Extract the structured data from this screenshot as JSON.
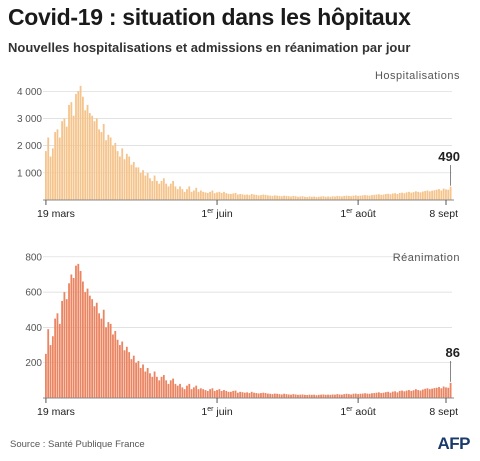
{
  "title": "Covid-19 : situation dans les hôpitaux",
  "subtitle": "Nouvelles hospitalisations et admissions en réanimation par jour",
  "source": "Source : Santé Publique France",
  "logo": "AFP",
  "colors": {
    "hosp": "#f5c48c",
    "rea": "#eb8461",
    "grid": "#d8d8d8",
    "axis": "#888888"
  },
  "chart_data": [
    {
      "type": "bar",
      "title": "Hospitalisations",
      "xlabel": "",
      "ylabel": "",
      "ylim": [
        0,
        4600
      ],
      "yticks": [
        1000,
        2000,
        3000,
        4000
      ],
      "ytick_labels": [
        "1 000",
        "2 000",
        "3 000",
        "4 000"
      ],
      "x_start": "19 mars",
      "xtick_labels": [
        {
          "label": "19 mars",
          "main": "19 mars",
          "sup": "",
          "tail": "",
          "index": 0
        },
        {
          "label": "1er juin",
          "main": "1",
          "sup": "er",
          "tail": " juin",
          "index": 74
        },
        {
          "label": "1er août",
          "main": "1",
          "sup": "er",
          "tail": " août",
          "index": 135
        },
        {
          "label": "8 sept",
          "main": "8 sept",
          "sup": "",
          "tail": "",
          "index": 173
        }
      ],
      "last_value": 490,
      "values": [
        1800,
        2300,
        1600,
        1900,
        2500,
        2600,
        2300,
        2900,
        3000,
        2700,
        3500,
        3600,
        3100,
        3900,
        4000,
        4200,
        3800,
        3300,
        3500,
        3200,
        3100,
        2900,
        3000,
        2600,
        2500,
        2800,
        2200,
        2400,
        2300,
        2000,
        2100,
        1800,
        1600,
        1900,
        1500,
        1700,
        1600,
        1300,
        1400,
        1200,
        1200,
        1000,
        1100,
        900,
        1000,
        800,
        700,
        900,
        700,
        600,
        700,
        800,
        600,
        500,
        600,
        700,
        500,
        400,
        500,
        400,
        300,
        400,
        500,
        300,
        350,
        450,
        300,
        350,
        300,
        280,
        260,
        300,
        350,
        250,
        280,
        300,
        260,
        300,
        250,
        230,
        220,
        240,
        260,
        200,
        220,
        210,
        190,
        200,
        180,
        220,
        200,
        190,
        170,
        180,
        200,
        190,
        170,
        160,
        150,
        170,
        160,
        150,
        140,
        160,
        150,
        140,
        130,
        150,
        140,
        120,
        130,
        140,
        120,
        110,
        130,
        120,
        130,
        110,
        120,
        130,
        140,
        120,
        130,
        120,
        140,
        130,
        150,
        140,
        130,
        150,
        160,
        150,
        140,
        160,
        170,
        150,
        160,
        170,
        180,
        170,
        160,
        180,
        190,
        200,
        210,
        190,
        200,
        220,
        230,
        210,
        240,
        250,
        220,
        260,
        270,
        250,
        280,
        300,
        270,
        290,
        320,
        300,
        280,
        310,
        330,
        350,
        320,
        340,
        360,
        380,
        400,
        350,
        420,
        390,
        380,
        490
      ]
    },
    {
      "type": "bar",
      "title": "Réanimation",
      "xlabel": "",
      "ylabel": "",
      "ylim": [
        0,
        850
      ],
      "yticks": [
        200,
        400,
        600,
        800
      ],
      "ytick_labels": [
        "200",
        "400",
        "600",
        "800"
      ],
      "x_start": "19 mars",
      "xtick_labels": [
        {
          "label": "19 mars",
          "main": "19 mars",
          "sup": "",
          "tail": "",
          "index": 0
        },
        {
          "label": "1er juin",
          "main": "1",
          "sup": "er",
          "tail": " juin",
          "index": 74
        },
        {
          "label": "1er août",
          "main": "1",
          "sup": "er",
          "tail": " août",
          "index": 135
        },
        {
          "label": "8 sept",
          "main": "8 sept",
          "sup": "",
          "tail": "",
          "index": 173
        }
      ],
      "last_value": 86,
      "values": [
        250,
        390,
        300,
        350,
        450,
        480,
        420,
        550,
        600,
        560,
        650,
        700,
        680,
        750,
        760,
        720,
        660,
        600,
        620,
        580,
        560,
        520,
        540,
        480,
        450,
        500,
        400,
        430,
        420,
        360,
        380,
        330,
        300,
        320,
        270,
        290,
        260,
        220,
        240,
        200,
        210,
        170,
        190,
        150,
        170,
        140,
        120,
        150,
        120,
        100,
        120,
        130,
        100,
        80,
        100,
        110,
        80,
        70,
        80,
        60,
        50,
        70,
        80,
        50,
        60,
        70,
        50,
        55,
        50,
        45,
        40,
        50,
        55,
        40,
        45,
        50,
        40,
        45,
        40,
        35,
        35,
        40,
        42,
        30,
        35,
        33,
        30,
        32,
        28,
        35,
        30,
        28,
        26,
        28,
        30,
        28,
        25,
        24,
        22,
        25,
        24,
        22,
        20,
        24,
        22,
        20,
        19,
        22,
        20,
        18,
        19,
        20,
        18,
        17,
        19,
        18,
        19,
        16,
        18,
        19,
        20,
        18,
        19,
        18,
        20,
        19,
        22,
        20,
        19,
        22,
        24,
        22,
        20,
        24,
        25,
        22,
        24,
        25,
        27,
        25,
        24,
        27,
        28,
        30,
        32,
        28,
        30,
        33,
        35,
        30,
        36,
        38,
        32,
        40,
        42,
        38,
        42,
        45,
        40,
        44,
        50,
        45,
        42,
        48,
        52,
        55,
        50,
        53,
        56,
        58,
        62,
        55,
        65,
        60,
        58,
        86
      ]
    }
  ]
}
